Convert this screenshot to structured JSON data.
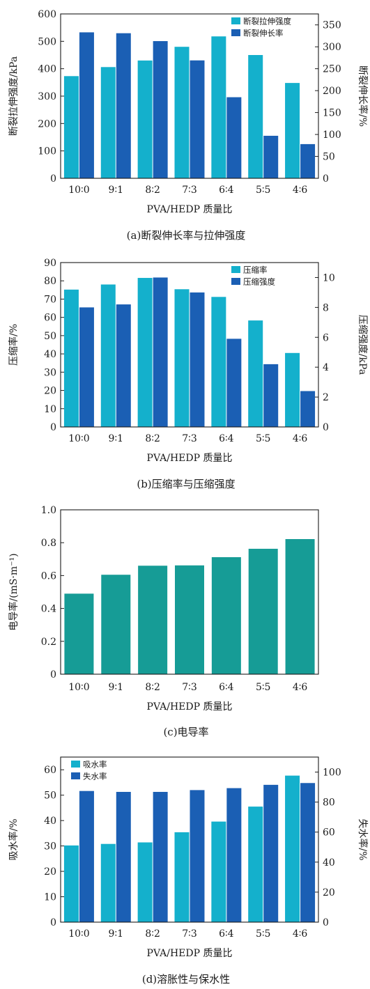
{
  "colors": {
    "light": "#14b0cc",
    "dark": "#1b5fb4",
    "teal": "#169c96"
  },
  "chart_data": [
    {
      "type": "bar",
      "caption": "(a)断裂伸长率与拉伸强度",
      "xlabel": "PVA/HEDP 质量比",
      "categories": [
        "10∶0",
        "9∶1",
        "8∶2",
        "7∶3",
        "6∶4",
        "5∶5",
        "4∶6"
      ],
      "ylabel": "断裂拉伸强度/kPa",
      "ylim": [
        0,
        600
      ],
      "yticks": [
        0,
        100,
        200,
        300,
        400,
        500,
        600
      ],
      "y2label": "断裂伸长率/%",
      "y2lim": [
        0,
        375
      ],
      "y2ticks": [
        0,
        50,
        100,
        150,
        200,
        250,
        300,
        350
      ],
      "legend": "top-right",
      "series": [
        {
          "name": "断裂拉伸强度",
          "axis": "left",
          "color": "light",
          "values": [
            373,
            406,
            430,
            480,
            518,
            450,
            348
          ]
        },
        {
          "name": "断裂伸长率",
          "axis": "right",
          "color": "dark",
          "values": [
            333,
            331,
            313,
            269,
            185,
            97,
            78
          ]
        }
      ]
    },
    {
      "type": "bar",
      "caption": "(b)压缩率与压缩强度",
      "xlabel": "PVA/HEDP 质量比",
      "categories": [
        "10∶0",
        "9∶1",
        "8∶2",
        "7∶3",
        "6∶4",
        "5∶5",
        "4∶6"
      ],
      "ylabel": "压缩率/%",
      "ylim": [
        0,
        90
      ],
      "yticks": [
        0,
        10,
        20,
        30,
        40,
        50,
        60,
        70,
        80,
        90
      ],
      "y2label": "压缩强度/kPa",
      "y2lim": [
        0,
        11
      ],
      "y2ticks": [
        0,
        2,
        4,
        6,
        8,
        10
      ],
      "legend": "top-right",
      "series": [
        {
          "name": "压缩率",
          "axis": "left",
          "color": "light",
          "values": [
            75.2,
            78,
            81.6,
            75.4,
            71.2,
            58.3,
            40.5
          ]
        },
        {
          "name": "压缩强度",
          "axis": "right",
          "color": "dark",
          "values": [
            8.0,
            8.2,
            10.0,
            9.0,
            5.9,
            4.2,
            2.4
          ]
        }
      ]
    },
    {
      "type": "bar",
      "caption": "(c)电导率",
      "xlabel": "PVA/HEDP 质量比",
      "categories": [
        "10∶0",
        "9∶1",
        "8∶2",
        "7∶3",
        "6∶4",
        "5∶5",
        "4∶6"
      ],
      "ylabel": "电导率/(mS·m⁻¹)",
      "ylim": [
        0,
        1.0
      ],
      "yticks": [
        0,
        0.2,
        0.4,
        0.6,
        0.8,
        1.0
      ],
      "yticklabels": [
        "0",
        "0.2",
        "0.4",
        "0.6",
        "0.8",
        "1.0"
      ],
      "series": [
        {
          "name": "",
          "axis": "left",
          "color": "teal",
          "values": [
            0.49,
            0.605,
            0.66,
            0.662,
            0.712,
            0.763,
            0.822
          ]
        }
      ]
    },
    {
      "type": "bar",
      "caption": "(d)溶胀性与保水性",
      "xlabel": "PVA/HEDP 质量比",
      "categories": [
        "10∶0",
        "9∶1",
        "8∶2",
        "7∶3",
        "6∶4",
        "5∶5",
        "4∶6"
      ],
      "ylabel": "吸水率/%",
      "ylim": [
        0,
        65
      ],
      "yticks": [
        0,
        10,
        20,
        30,
        40,
        50,
        60
      ],
      "y2label": "失水率/%",
      "y2lim": [
        0,
        110
      ],
      "y2ticks": [
        0,
        20,
        40,
        60,
        80,
        100
      ],
      "legend": "top-left",
      "series": [
        {
          "name": "吸水率",
          "axis": "left",
          "color": "light",
          "values": [
            30.2,
            30.8,
            31.4,
            35.4,
            39.6,
            45.5,
            57.7
          ]
        },
        {
          "name": "失水率",
          "axis": "right",
          "color": "dark",
          "values": [
            87.4,
            86.8,
            86.8,
            88.0,
            89.3,
            91.5,
            92.7
          ]
        }
      ]
    }
  ]
}
